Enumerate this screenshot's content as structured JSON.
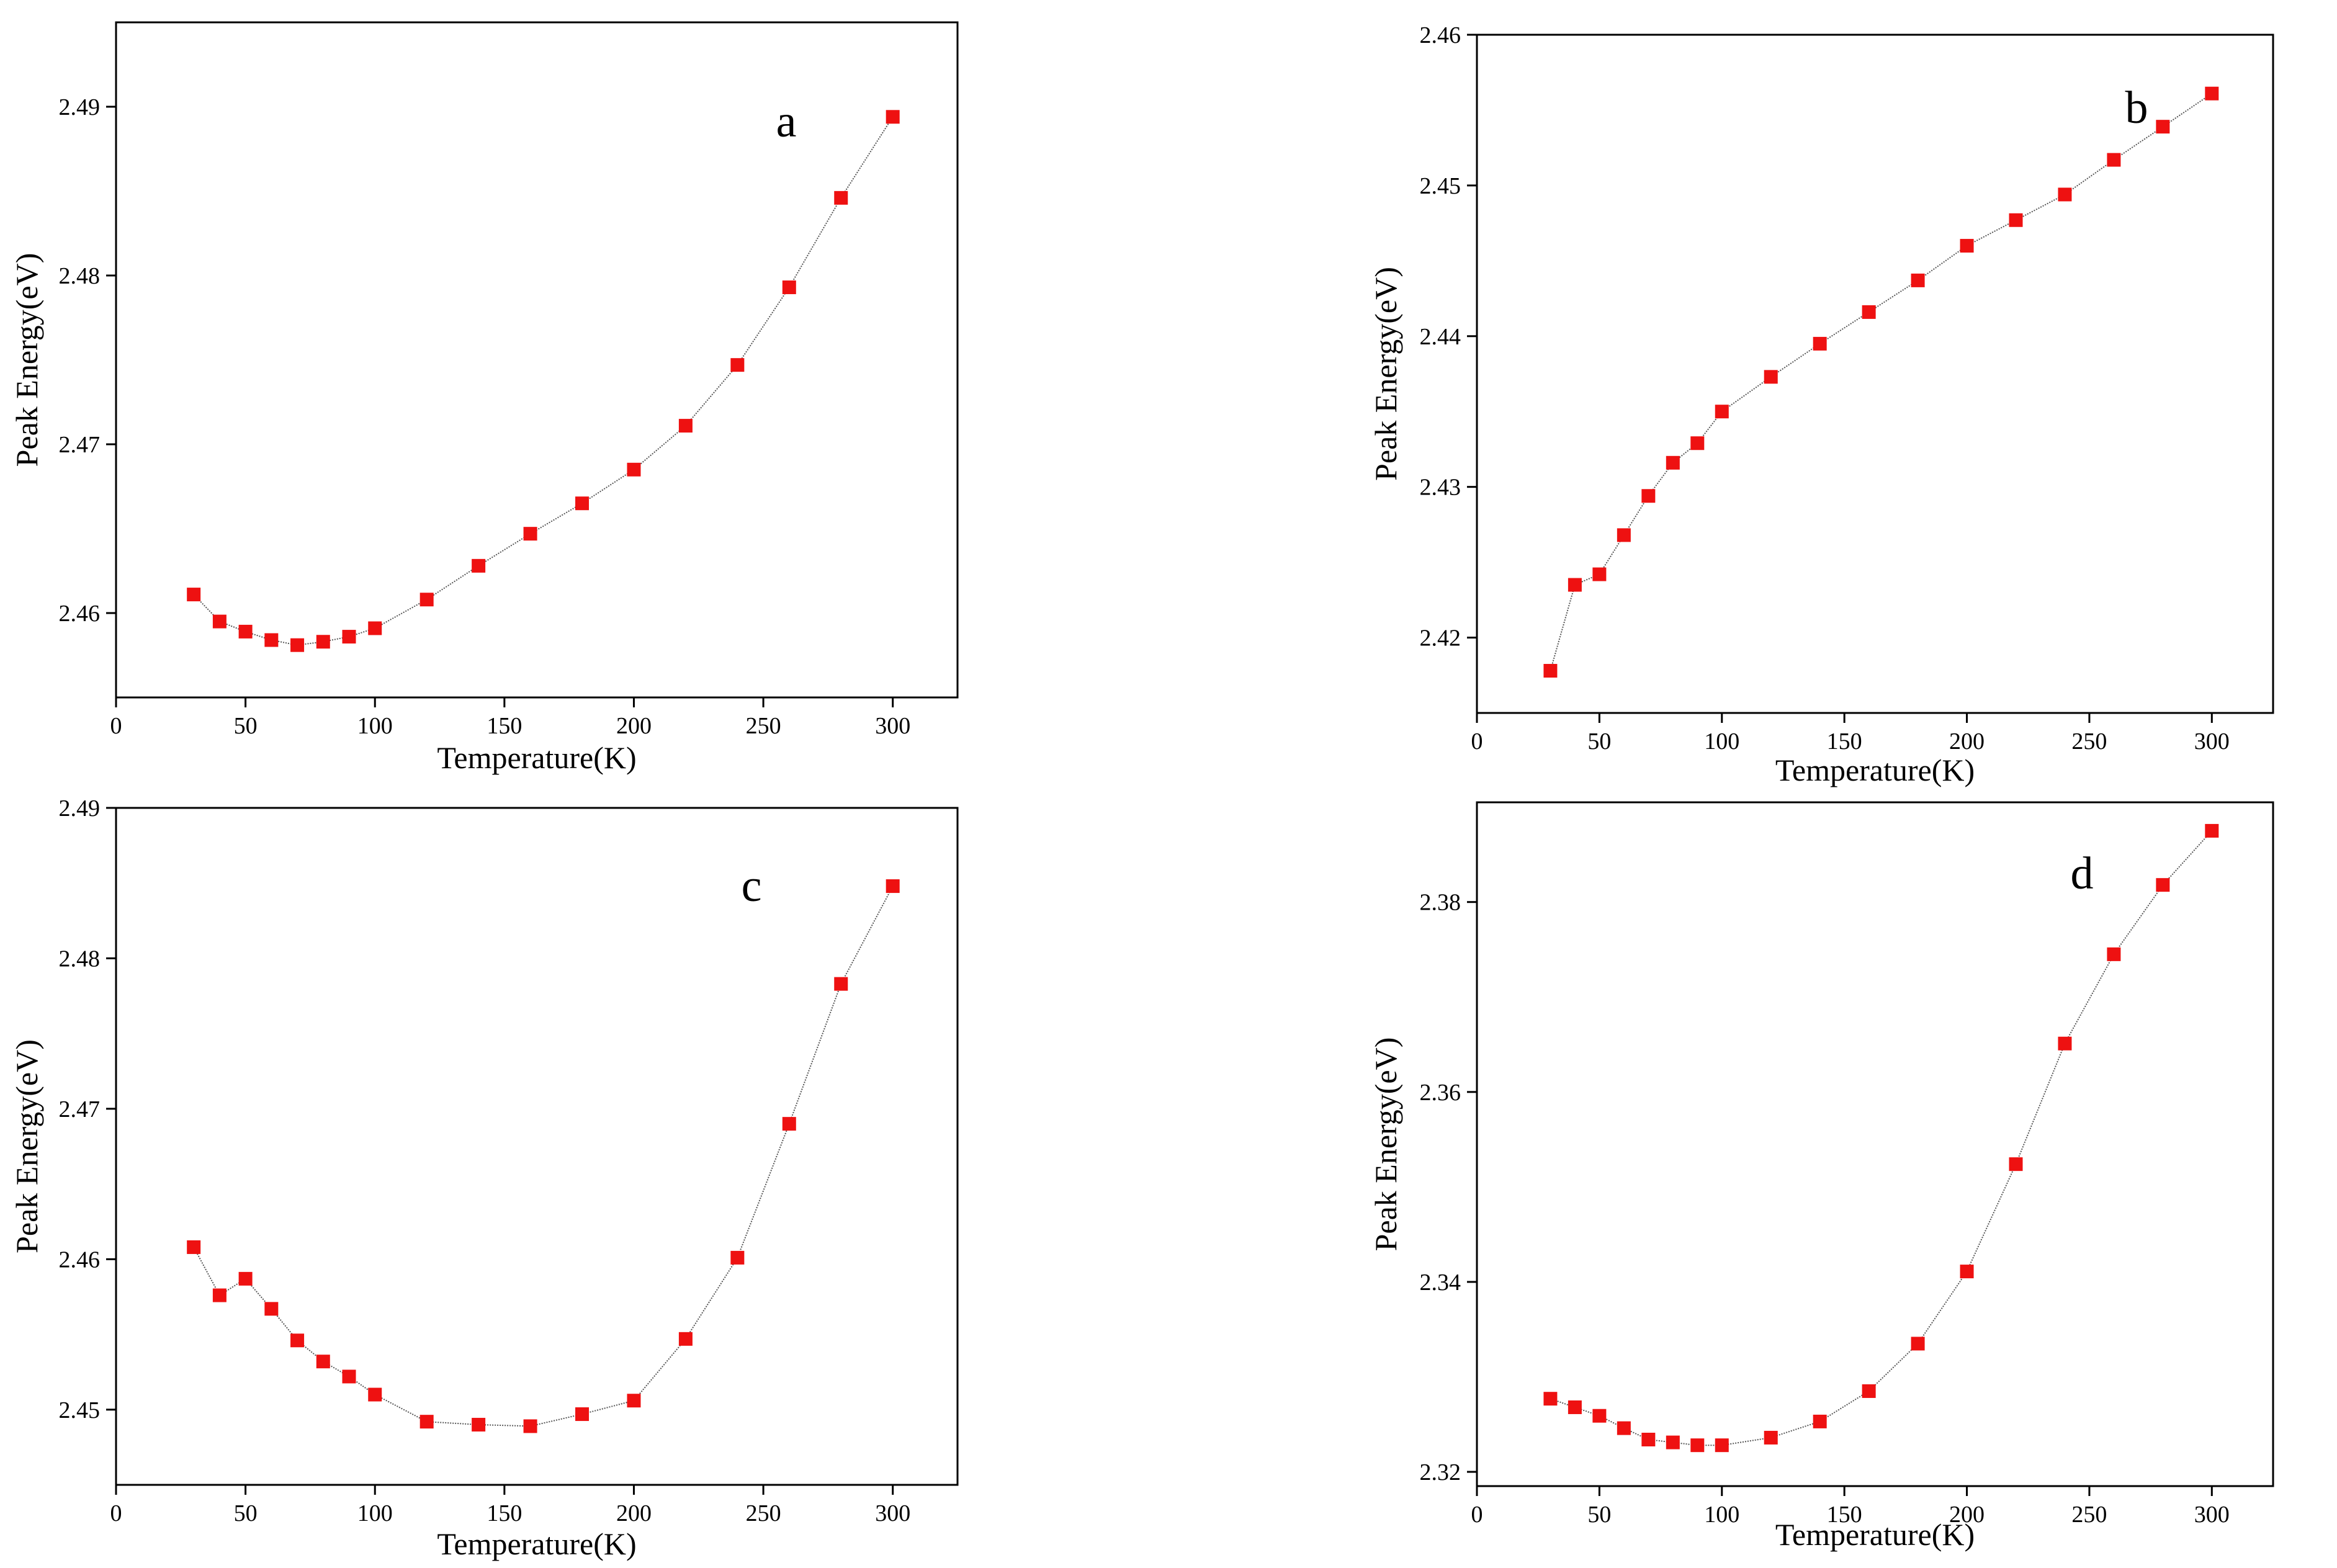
{
  "chart_data": [
    {
      "type": "scatter",
      "panel": "a",
      "xlabel": "Temperature(K)",
      "ylabel": "Peak Energy(eV)",
      "xlim": [
        0,
        325
      ],
      "ylim": [
        2.455,
        2.495
      ],
      "xticks": [
        0,
        50,
        100,
        150,
        200,
        250,
        300
      ],
      "yticks": [
        2.46,
        2.47,
        2.48,
        2.49
      ],
      "ytick_labels": [
        "2.46",
        "2.47",
        "2.48",
        "2.49"
      ],
      "marker_color": "#ee1111",
      "x": [
        30,
        40,
        50,
        60,
        70,
        80,
        90,
        100,
        120,
        140,
        160,
        180,
        200,
        220,
        240,
        260,
        280,
        300
      ],
      "y": [
        2.4611,
        2.4595,
        2.4589,
        2.4584,
        2.4581,
        2.4583,
        2.4586,
        2.4591,
        2.4608,
        2.4628,
        2.4647,
        2.4665,
        2.4685,
        2.4711,
        2.4747,
        2.4793,
        2.4846,
        2.4894
      ]
    },
    {
      "type": "scatter",
      "panel": "b",
      "xlabel": "Temperature(K)",
      "ylabel": "Peak Energy(eV)",
      "xlim": [
        0,
        325
      ],
      "ylim": [
        2.415,
        2.46
      ],
      "xticks": [
        0,
        50,
        100,
        150,
        200,
        250,
        300
      ],
      "yticks": [
        2.42,
        2.43,
        2.44,
        2.45,
        2.46
      ],
      "ytick_labels": [
        "2.42",
        "2.43",
        "2.44",
        "2.45",
        "2.46"
      ],
      "marker_color": "#ee1111",
      "x": [
        30,
        40,
        50,
        60,
        70,
        80,
        90,
        100,
        120,
        140,
        160,
        180,
        200,
        220,
        240,
        260,
        280,
        300
      ],
      "y": [
        2.4178,
        2.4235,
        2.4242,
        2.4268,
        2.4294,
        2.4316,
        2.4329,
        2.435,
        2.4373,
        2.4395,
        2.4416,
        2.4437,
        2.446,
        2.4477,
        2.4494,
        2.4517,
        2.4539,
        2.4561
      ]
    },
    {
      "type": "scatter",
      "panel": "c",
      "xlabel": "Temperature(K)",
      "ylabel": "Peak Energy(eV)",
      "xlim": [
        0,
        325
      ],
      "ylim": [
        2.445,
        2.49
      ],
      "xticks": [
        0,
        50,
        100,
        150,
        200,
        250,
        300
      ],
      "yticks": [
        2.45,
        2.46,
        2.47,
        2.48,
        2.49
      ],
      "ytick_labels": [
        "2.45",
        "2.46",
        "2.47",
        "2.48",
        "2.49"
      ],
      "marker_color": "#ee1111",
      "x": [
        30,
        40,
        50,
        60,
        70,
        80,
        90,
        100,
        120,
        140,
        160,
        180,
        200,
        220,
        240,
        260,
        280,
        300
      ],
      "y": [
        2.4608,
        2.4576,
        2.4587,
        2.4567,
        2.4546,
        2.4532,
        2.4522,
        2.451,
        2.4492,
        2.449,
        2.4489,
        2.4497,
        2.4506,
        2.4547,
        2.4601,
        2.469,
        2.4783,
        2.4848
      ]
    },
    {
      "type": "scatter",
      "panel": "d",
      "xlabel": "Temperature(K)",
      "ylabel": "Peak Energy(eV)",
      "xlim": [
        0,
        325
      ],
      "ylim": [
        2.3185,
        2.3905
      ],
      "xticks": [
        0,
        50,
        100,
        150,
        200,
        250,
        300
      ],
      "yticks": [
        2.32,
        2.34,
        2.36,
        2.38
      ],
      "ytick_labels": [
        "2.32",
        "2.34",
        "2.36",
        "2.38"
      ],
      "marker_color": "#ee1111",
      "x": [
        30,
        40,
        50,
        60,
        70,
        80,
        90,
        100,
        120,
        140,
        160,
        180,
        200,
        220,
        240,
        260,
        280,
        300
      ],
      "y": [
        2.3277,
        2.3268,
        2.3259,
        2.3246,
        2.3234,
        2.3231,
        2.3228,
        2.3228,
        2.3236,
        2.3253,
        2.3285,
        2.3335,
        2.3411,
        2.3524,
        2.3651,
        2.3745,
        2.3818,
        2.3875
      ]
    }
  ]
}
